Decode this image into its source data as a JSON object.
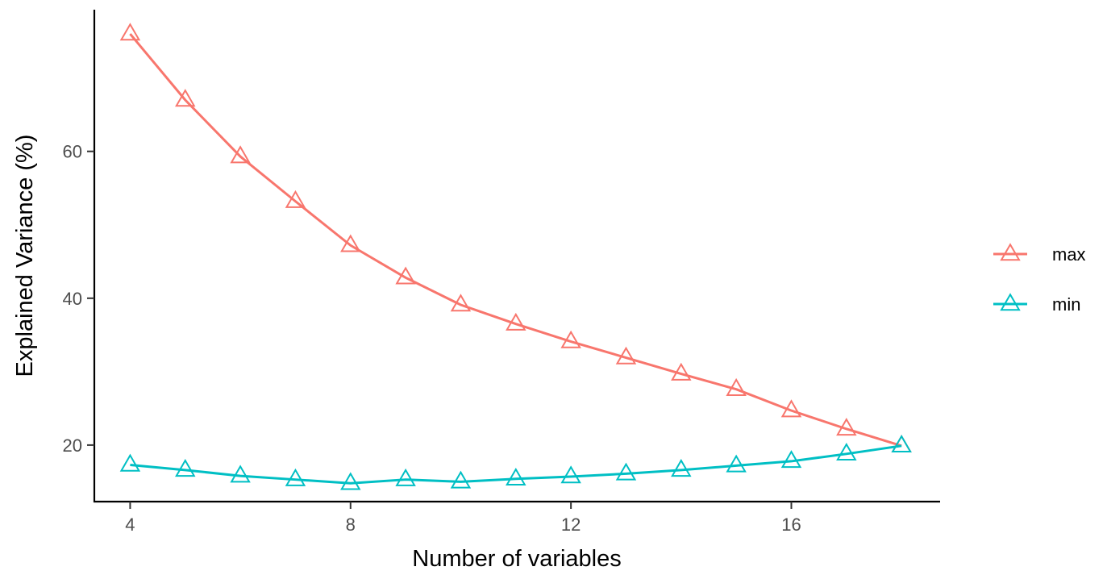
{
  "chart_data": {
    "type": "line",
    "xlabel": "Number of variables",
    "ylabel": "Explained Variance (%)",
    "xlim": [
      3.35,
      18.7
    ],
    "ylim": [
      12.3,
      79.3
    ],
    "x_ticks": [
      4,
      8,
      12,
      16
    ],
    "y_ticks": [
      20,
      40,
      60
    ],
    "x": [
      4,
      5,
      6,
      7,
      8,
      9,
      10,
      11,
      12,
      13,
      14,
      15,
      16,
      17,
      18
    ],
    "series": [
      {
        "name": "max",
        "color": "#F8766D",
        "marker": "triangle-open",
        "values": [
          76.0,
          67.0,
          59.3,
          53.2,
          47.2,
          42.8,
          39.1,
          36.5,
          34.1,
          31.9,
          29.7,
          27.6,
          24.7,
          22.2,
          19.9
        ]
      },
      {
        "name": "min",
        "color": "#00BFC4",
        "marker": "triangle-open",
        "values": [
          17.3,
          16.6,
          15.8,
          15.3,
          14.8,
          15.3,
          15.0,
          15.4,
          15.7,
          16.1,
          16.6,
          17.2,
          17.8,
          18.8,
          19.9
        ]
      }
    ],
    "legend_position": "right",
    "grid": false
  }
}
